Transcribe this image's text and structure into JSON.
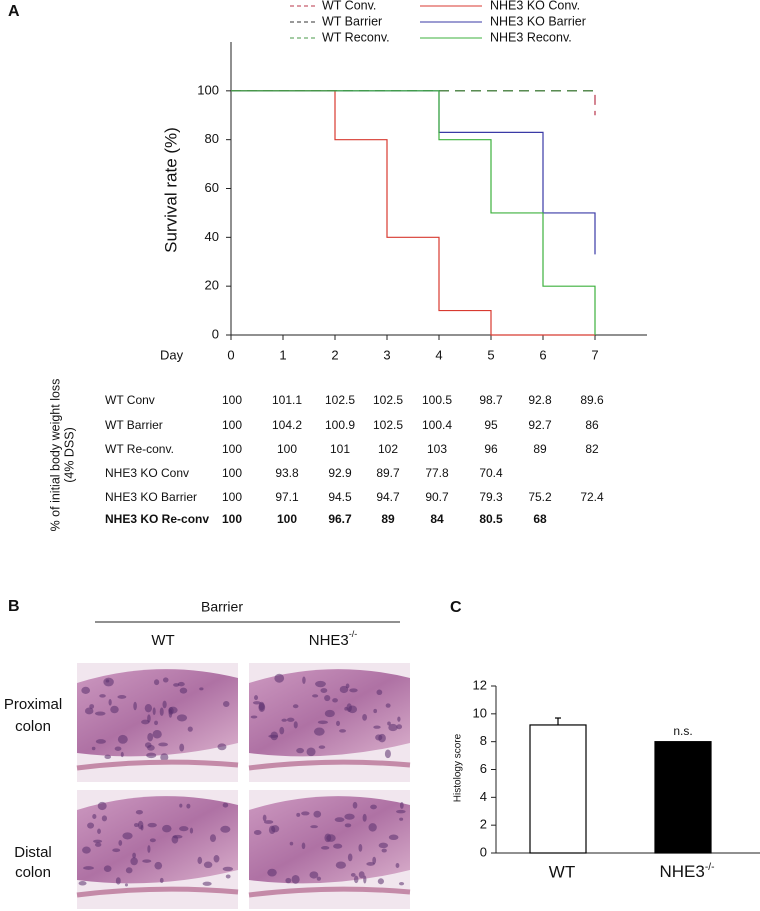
{
  "panel_labels": [
    "A",
    "B",
    "C"
  ],
  "chart_data": [
    {
      "type": "step",
      "y_label": "Survival rate (%)",
      "x_label": "Day",
      "x": [
        0,
        1,
        2,
        3,
        4,
        5,
        6,
        7
      ],
      "xlim": [
        0,
        8
      ],
      "xticks": [
        0,
        1,
        2,
        3,
        4,
        5,
        6,
        7
      ],
      "ylim": [
        0,
        120
      ],
      "yticks": [
        0,
        20,
        40,
        60,
        80,
        100
      ],
      "series": [
        {
          "name": "WT Conv.",
          "color": "#b8344a",
          "dashed": true,
          "values": [
            100,
            100,
            100,
            100,
            100,
            100,
            100,
            90
          ]
        },
        {
          "name": "WT Barrier",
          "color": "#333333",
          "dashed": true,
          "values": [
            100,
            100,
            100,
            100,
            100,
            100,
            100,
            100
          ]
        },
        {
          "name": "WT Reconv.",
          "color": "#4a9a4a",
          "dashed": true,
          "values": [
            100,
            100,
            100,
            100,
            100,
            100,
            100,
            100
          ]
        },
        {
          "name": "NHE3 KO Conv.",
          "color": "#d83a30",
          "dashed": false,
          "values": [
            100,
            100,
            80,
            40,
            10,
            0,
            0,
            0
          ]
        },
        {
          "name": "NHE3 KO Barrier",
          "color": "#3a3aa6",
          "dashed": false,
          "values": [
            100,
            100,
            100,
            100,
            83,
            83,
            50,
            33
          ]
        },
        {
          "name": "NHE3 Reconv.",
          "color": "#3db03d",
          "dashed": false,
          "values": [
            100,
            100,
            100,
            100,
            80,
            50,
            20,
            0
          ]
        }
      ]
    },
    {
      "type": "bar",
      "y_label": "Histology score",
      "categories": [
        "WT",
        {
          "text": "NHE3",
          "superscript": "-/-"
        }
      ],
      "values": [
        9.2,
        8.0
      ],
      "errors": [
        0.5,
        null
      ],
      "colors": [
        "#ffffff",
        "#000000"
      ],
      "annotation": "n.s.",
      "ylim": [
        0,
        12
      ],
      "yticks": [
        0,
        2,
        4,
        6,
        8,
        10,
        12
      ]
    }
  ],
  "weight_table": {
    "title": [
      "% of initial body weight loss",
      "(4% DSS)"
    ],
    "rows": [
      {
        "name": "WT Conv",
        "values": [
          100,
          101.1,
          102.5,
          102.5,
          100.5,
          98.7,
          92.8,
          89.6
        ]
      },
      {
        "name": "WT Barrier",
        "values": [
          100,
          104.2,
          100.9,
          102.5,
          100.4,
          95,
          92.7,
          86
        ]
      },
      {
        "name": "WT Re-conv.",
        "values": [
          100,
          100,
          101,
          102,
          103,
          96,
          89,
          82
        ]
      },
      {
        "name": "NHE3 KO Conv",
        "values": [
          100,
          93.8,
          92.9,
          89.7,
          77.8,
          70.4
        ]
      },
      {
        "name": "NHE3 KO Barrier",
        "values": [
          100,
          97.1,
          94.5,
          94.7,
          90.7,
          79.3,
          75.2,
          72.4
        ]
      },
      {
        "name": "NHE3 KO Re-conv",
        "bold": true,
        "values": [
          100,
          100,
          96.7,
          89,
          84,
          80.5,
          68
        ]
      }
    ]
  },
  "histology": {
    "group": "Barrier",
    "columns": [
      "WT",
      {
        "text": "NHE3",
        "superscript": "-/-"
      }
    ],
    "rows": [
      [
        "Proximal",
        "colon"
      ],
      [
        "Distal",
        "colon"
      ]
    ]
  }
}
